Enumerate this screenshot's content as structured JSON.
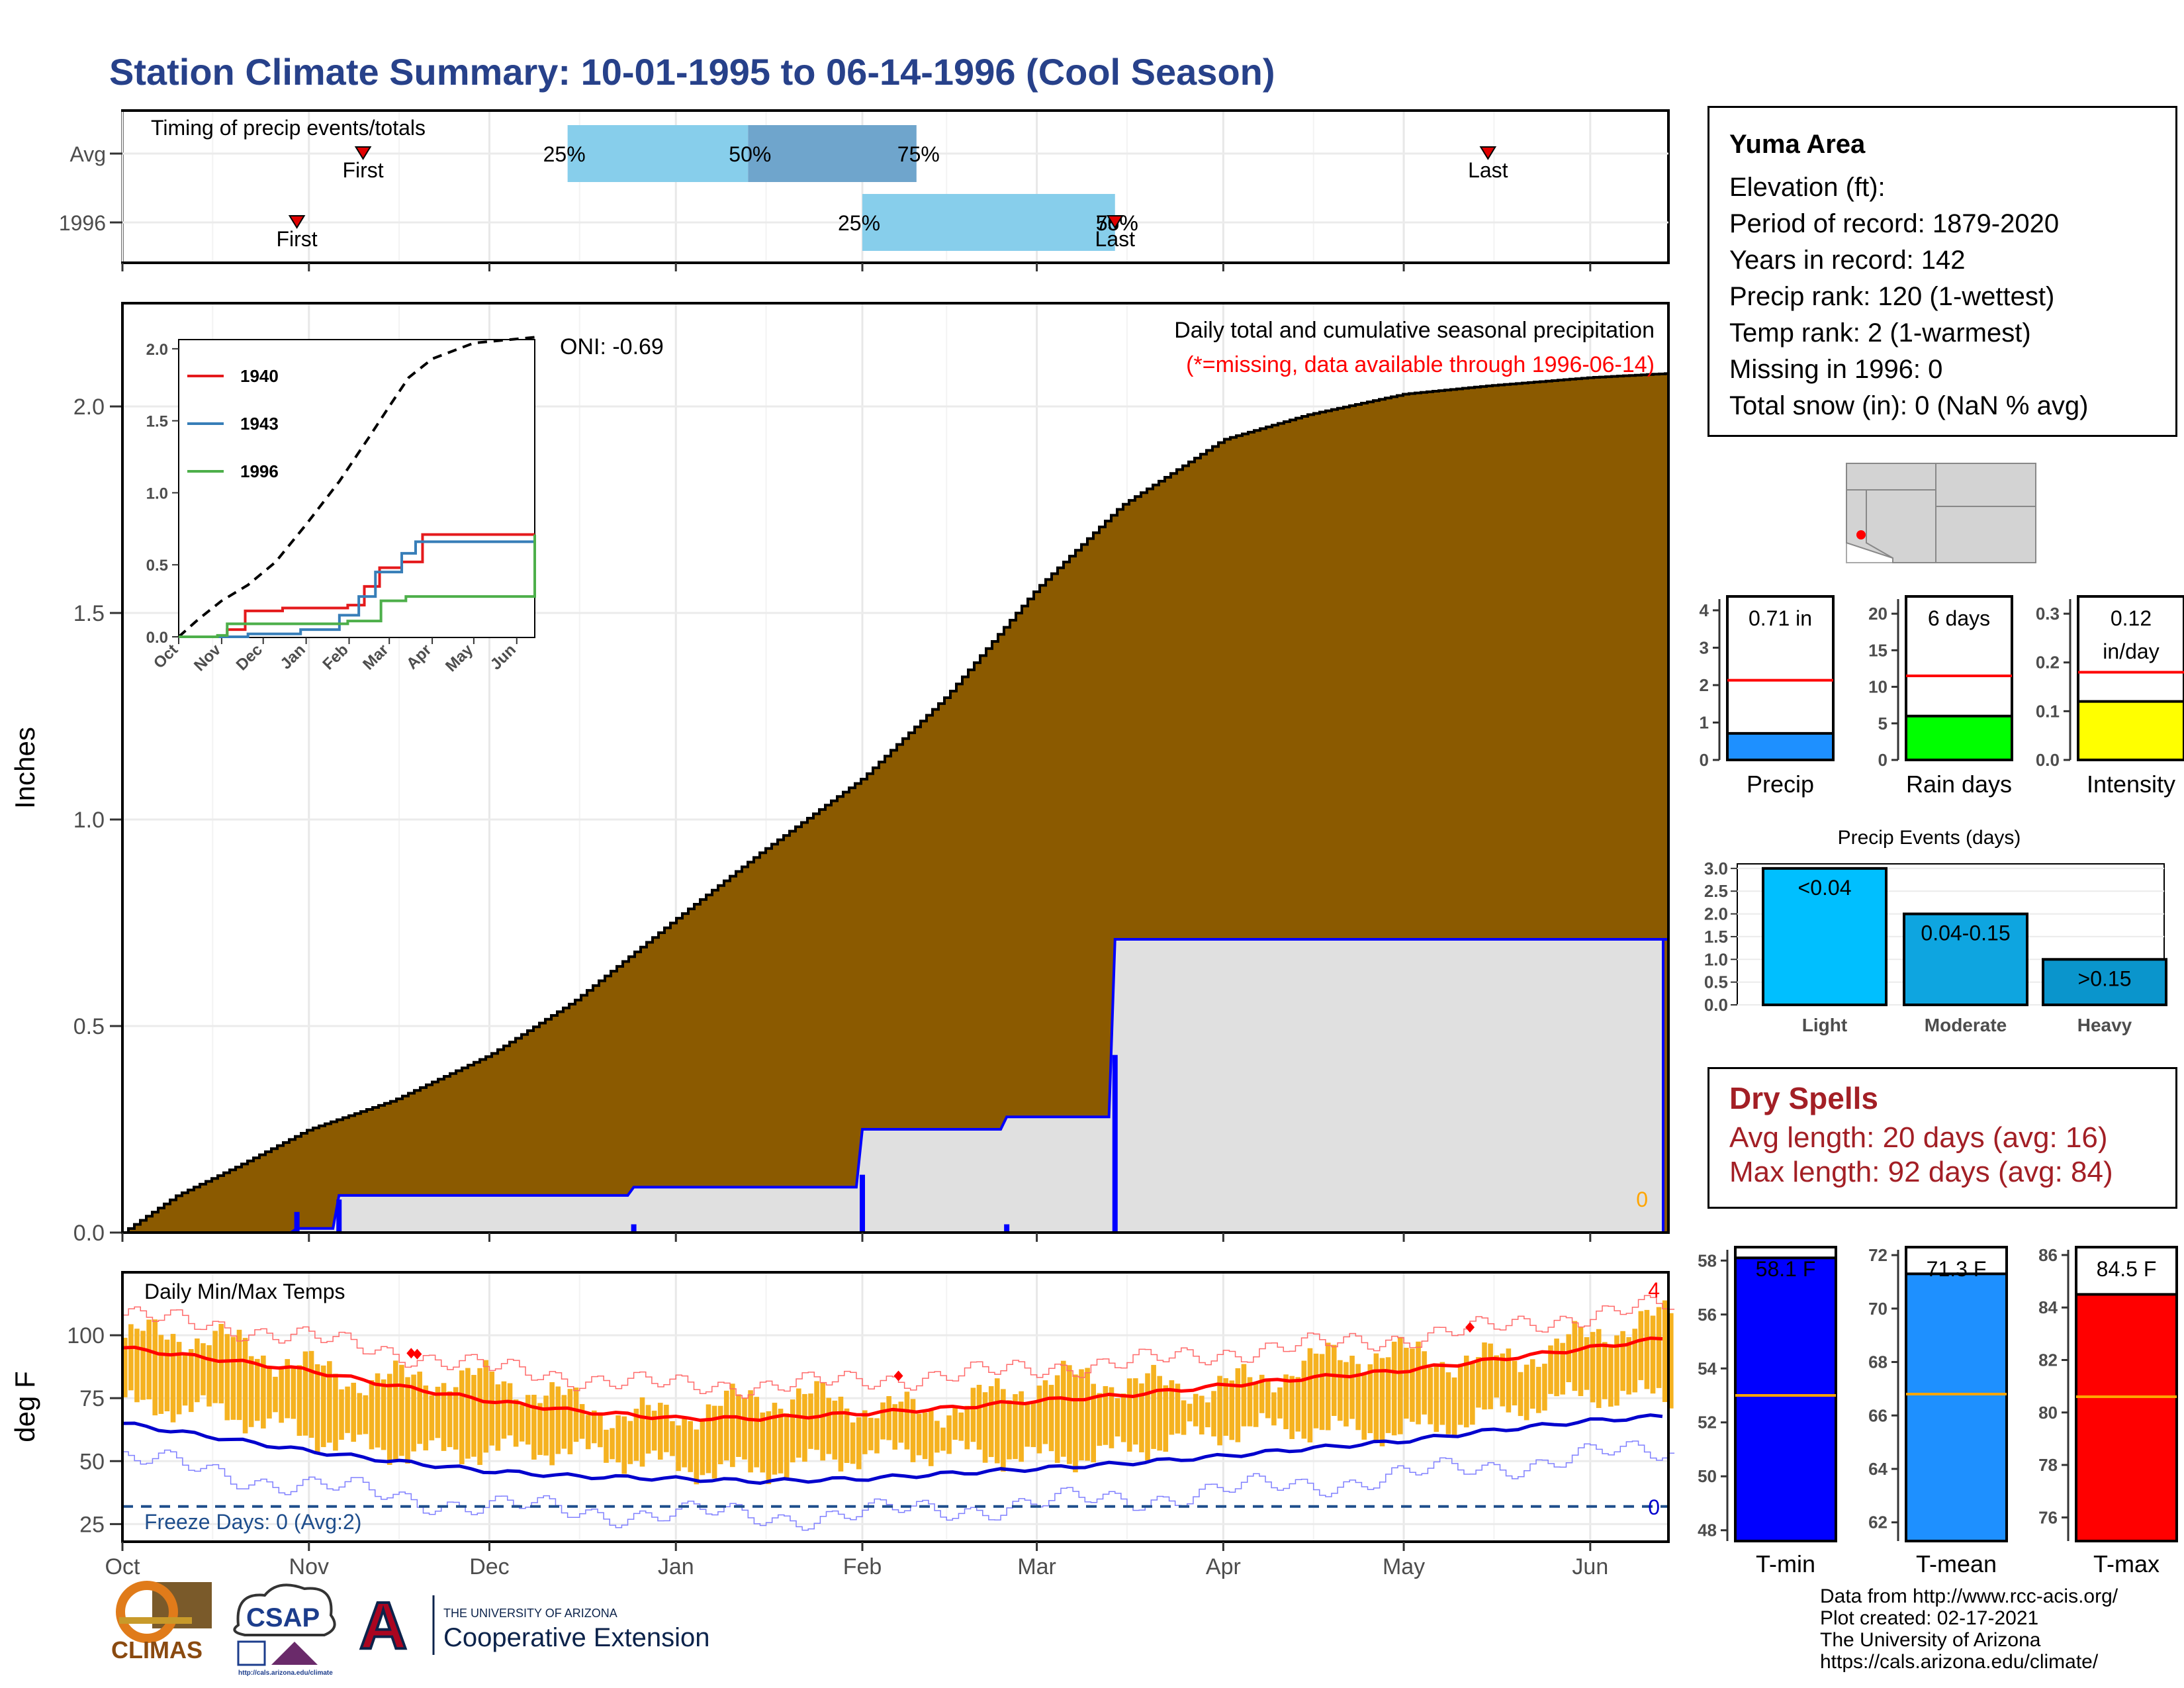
{
  "title": "Station Climate Summary: 10-01-1995 to 06-14-1996 (Cool Season)",
  "station": {
    "name": "Yuma Area",
    "lines": [
      "Elevation (ft):",
      "Period of record: 1879-2020",
      "Years in record: 142",
      "Precip rank: 120 (1-wettest)",
      "Temp rank: 2 (1-warmest)",
      "Missing in 1996: 0",
      "Total snow (in): 0 (NaN % avg)"
    ]
  },
  "dry_spells": {
    "title": "Dry Spells",
    "avg": "Avg length: 20 days (avg: 16)",
    "max": "Max length: 92 days (avg: 84)"
  },
  "credits": [
    "Data from http://www.rcc-acis.org/",
    "Plot created: 02-17-2021",
    "The University of Arizona",
    "https://cals.arizona.edu/climate/"
  ],
  "logos": {
    "climas": "CLIMAS",
    "csap": "CSAP",
    "csap_url": "http://cals.arizona.edu/climate",
    "ua_top": "THE UNIVERSITY OF ARIZONA",
    "ua_main": "Cooperative Extension",
    "ua_letter": "A"
  },
  "months": [
    "Oct",
    "Nov",
    "Dec",
    "Jan",
    "Feb",
    "Mar",
    "Apr",
    "May",
    "Jun"
  ],
  "colors": {
    "title": "#27418a",
    "cumulative_fill": "#8b5a00",
    "current_fill": "#e0e0e0",
    "current_line": "#0000ff",
    "event_bar": "#87ceeb",
    "event_mid": "#6fa5cc",
    "red": "#ff0000",
    "orange": "#f5b220",
    "dry_text": "#a31f25"
  },
  "chart_data": [
    {
      "id": "timing",
      "type": "bar",
      "title": "Timing of precip events/totals",
      "categories": [
        "Avg",
        "1996"
      ],
      "rows": [
        {
          "label": "Avg",
          "first": "1995-11-10",
          "last": "1996-05-15",
          "p25": "1995-12-14",
          "p50": "1996-01-13",
          "p75": "1996-02-10",
          "p25_label": "25%",
          "p50_label": "50%",
          "p75_label": "75%",
          "first_label": "First",
          "last_label": "Last"
        },
        {
          "label": "1996",
          "first": "1995-10-30",
          "last": "1996-03-14",
          "p25": "1996-02-01",
          "p50": "1996-03-14",
          "p75": "1996-03-14",
          "p25_label": "25%",
          "p50_label": "50%",
          "p75_label": "75%",
          "first_label": "First",
          "last_label": "Last"
        }
      ]
    },
    {
      "id": "precip",
      "type": "area",
      "title": "Daily total and cumulative seasonal precipitation",
      "subtitle": "(*=missing, data available through 1996-06-14)",
      "ylabel": "Inches",
      "ylim": [
        0,
        2.25
      ],
      "yticks": [
        0.0,
        0.5,
        1.0,
        1.5,
        2.0
      ],
      "oni": "ONI: -0.69",
      "missing_count": "0",
      "cumulative_avg": {
        "x": [
          "1995-10-01",
          "1995-10-10",
          "1995-10-20",
          "1995-11-01",
          "1995-11-15",
          "1995-12-01",
          "1995-12-15",
          "1996-01-01",
          "1996-01-15",
          "1996-02-01",
          "1996-02-15",
          "1996-03-01",
          "1996-03-15",
          "1996-04-01",
          "1996-04-15",
          "1996-05-01",
          "1996-05-15",
          "1996-06-01",
          "1996-06-14"
        ],
        "y": [
          0.0,
          0.09,
          0.16,
          0.25,
          0.32,
          0.43,
          0.56,
          0.76,
          0.92,
          1.1,
          1.3,
          1.56,
          1.76,
          1.92,
          1.98,
          2.03,
          2.05,
          2.07,
          2.08
        ]
      },
      "cumulative_1996": {
        "x": [
          "1995-10-01",
          "1995-10-29",
          "1995-10-30",
          "1995-11-05",
          "1995-11-06",
          "1995-12-24",
          "1995-12-25",
          "1996-01-31",
          "1996-02-01",
          "1996-02-24",
          "1996-02-25",
          "1996-03-13",
          "1996-03-14",
          "1996-06-14"
        ],
        "y": [
          0.0,
          0.0,
          0.01,
          0.01,
          0.09,
          0.09,
          0.11,
          0.11,
          0.25,
          0.25,
          0.28,
          0.28,
          0.71,
          0.71
        ]
      },
      "daily_1996": [
        {
          "date": "1995-10-30",
          "value": 0.05
        },
        {
          "date": "1995-11-06",
          "value": 0.08
        },
        {
          "date": "1995-12-25",
          "value": 0.02
        },
        {
          "date": "1996-02-01",
          "value": 0.14
        },
        {
          "date": "1996-02-25",
          "value": 0.02
        },
        {
          "date": "1996-03-14",
          "value": 0.43
        }
      ]
    },
    {
      "id": "inset",
      "type": "line",
      "yticks": [
        0.0,
        0.5,
        1.0,
        1.5,
        2.0
      ],
      "ylim": [
        0,
        2.05
      ],
      "series": [
        {
          "name": "1940",
          "color": "#e41a1c",
          "x": [
            "1995-10-01",
            "1995-11-05",
            "1995-11-18",
            "1995-12-15",
            "1996-01-31",
            "1996-02-12",
            "1996-02-23",
            "1996-03-10",
            "1996-03-25",
            "1996-06-14"
          ],
          "y": [
            0,
            0.05,
            0.18,
            0.2,
            0.22,
            0.35,
            0.48,
            0.52,
            0.71,
            0.71
          ]
        },
        {
          "name": "1943",
          "color": "#377eb8",
          "x": [
            "1995-10-01",
            "1995-11-20",
            "1995-12-28",
            "1996-01-25",
            "1996-02-08",
            "1996-02-20",
            "1996-03-10",
            "1996-03-20",
            "1996-06-14"
          ],
          "y": [
            0,
            0.02,
            0.05,
            0.15,
            0.28,
            0.45,
            0.58,
            0.66,
            0.67
          ]
        },
        {
          "name": "1996",
          "color": "#4daf4a",
          "x": [
            "1995-10-01",
            "1995-10-29",
            "1995-11-05",
            "1996-01-31",
            "1996-02-24",
            "1996-03-13",
            "1996-06-14"
          ],
          "y": [
            0,
            0.01,
            0.09,
            0.11,
            0.25,
            0.28,
            0.71
          ]
        }
      ],
      "avg": {
        "x": [
          "1995-10-01",
          "1995-10-15",
          "1995-11-01",
          "1995-11-20",
          "1995-12-10",
          "1996-01-01",
          "1996-01-25",
          "1996-02-15",
          "1996-03-01",
          "1996-03-15",
          "1996-04-01",
          "1996-05-01",
          "1996-06-14"
        ],
        "y": [
          0,
          0.12,
          0.25,
          0.36,
          0.52,
          0.78,
          1.08,
          1.38,
          1.6,
          1.8,
          1.93,
          2.04,
          2.08
        ]
      }
    },
    {
      "id": "temps",
      "type": "line",
      "title": "Daily Min/Max Temps",
      "ylabel": "deg F",
      "ylim": [
        18,
        125
      ],
      "yticks": [
        25,
        50,
        75,
        100
      ],
      "freeze_label": "Freeze Days: 0 (Avg:2)",
      "freeze_line": 32,
      "freeze_count": "0",
      "record_count": "4",
      "avg_max": {
        "x": [
          "1995-10-01",
          "1995-10-15",
          "1995-11-01",
          "1995-11-15",
          "1995-12-01",
          "1995-12-15",
          "1996-01-01",
          "1996-01-15",
          "1996-02-01",
          "1996-02-15",
          "1996-03-01",
          "1996-03-15",
          "1996-04-01",
          "1996-04-15",
          "1996-05-01",
          "1996-05-15",
          "1996-06-01",
          "1996-06-14"
        ],
        "y": [
          95,
          91,
          86,
          80,
          74,
          70,
          67,
          67,
          69,
          71,
          74,
          76,
          80,
          83,
          86,
          90,
          95,
          99
        ]
      },
      "avg_min": {
        "x": [
          "1995-10-01",
          "1995-10-15",
          "1995-11-01",
          "1995-11-15",
          "1995-12-01",
          "1995-12-15",
          "1996-01-01",
          "1996-01-15",
          "1996-02-01",
          "1996-02-15",
          "1996-03-01",
          "1996-03-15",
          "1996-04-01",
          "1996-04-15",
          "1996-05-01",
          "1996-05-15",
          "1996-06-01",
          "1996-06-14"
        ],
        "y": [
          65,
          60,
          54,
          50,
          46,
          44,
          43,
          42,
          43,
          45,
          47,
          49,
          52,
          55,
          58,
          62,
          66,
          68
        ]
      },
      "record_max_points": [
        "1995-11-18",
        "1995-11-19",
        "1996-02-07",
        "1996-05-12"
      ]
    },
    {
      "id": "summary_precip",
      "type": "bar",
      "panels": [
        {
          "label": "Precip",
          "value": 0.71,
          "value_label": "0.71 in",
          "avg": 2.13,
          "ylim": [
            0,
            4.3
          ],
          "yticks": [
            0,
            1,
            2,
            3,
            4
          ],
          "color": "#1e90ff"
        },
        {
          "label": "Rain days",
          "value": 6,
          "value_label": "6 days",
          "avg": 11.5,
          "ylim": [
            0,
            22
          ],
          "yticks": [
            0,
            5,
            10,
            15,
            20
          ],
          "color": "#00ff00"
        },
        {
          "label": "Intensity",
          "value": 0.12,
          "value_label": "0.12",
          "value_label2": "in/day",
          "avg": 0.18,
          "ylim": [
            0,
            0.33
          ],
          "yticks": [
            0.0,
            0.1,
            0.2,
            0.3
          ],
          "color": "#ffff00"
        }
      ]
    },
    {
      "id": "events",
      "type": "bar",
      "title": "Precip Events (days)",
      "categories": [
        "Light",
        "Moderate",
        "Heavy"
      ],
      "bar_labels": [
        "<0.04",
        "0.04-0.15",
        ">0.15"
      ],
      "values": [
        3,
        2,
        1
      ],
      "colors": [
        "#00bfff",
        "#0ea5e0",
        "#0a95cc"
      ],
      "ylim": [
        0,
        3.1
      ],
      "yticks": [
        0.0,
        0.5,
        1.0,
        1.5,
        2.0,
        2.5,
        3.0
      ]
    },
    {
      "id": "summary_temp",
      "type": "bar",
      "panels": [
        {
          "label": "T-min",
          "value": 58.1,
          "value_label": "58.1 F",
          "avg": 53.0,
          "ylim": [
            47.6,
            58.4
          ],
          "yticks": [
            48,
            50,
            52,
            54,
            56,
            58
          ],
          "color": "#0000ff"
        },
        {
          "label": "T-mean",
          "value": 71.3,
          "value_label": "71.3 F",
          "avg": 66.8,
          "ylim": [
            61.3,
            72.2
          ],
          "yticks": [
            62,
            64,
            66,
            68,
            70,
            72
          ],
          "color": "#1e90ff"
        },
        {
          "label": "T-max",
          "value": 84.5,
          "value_label": "84.5 F",
          "avg": 80.6,
          "ylim": [
            75.1,
            86.2
          ],
          "yticks": [
            76,
            78,
            80,
            82,
            84,
            86
          ],
          "color": "#ff0000"
        }
      ]
    }
  ]
}
